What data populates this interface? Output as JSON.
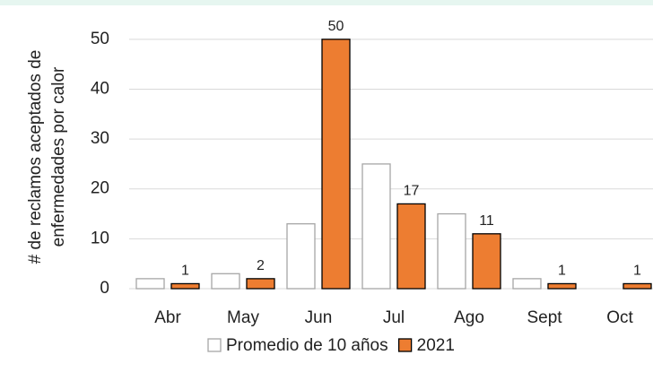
{
  "chart_data": {
    "type": "bar",
    "ylabel": [
      "# de reclamos aceptados de",
      "enfermedades por calor"
    ],
    "categories": [
      "Abr",
      "May",
      "Jun",
      "Jul",
      "Ago",
      "Sept",
      "Oct"
    ],
    "series": [
      {
        "name": "Promedio de 10 años",
        "color": "#ffffff",
        "edge": "#a6a6a6",
        "values": [
          2,
          3,
          13,
          25,
          15,
          2,
          0
        ],
        "data_labels": false
      },
      {
        "name": "2021",
        "color": "#ed7d31",
        "edge": "#000000",
        "values": [
          1,
          2,
          50,
          17,
          11,
          1,
          1
        ],
        "data_labels": true
      }
    ],
    "ylim": [
      0,
      55
    ],
    "yticks": [
      0,
      10,
      20,
      30,
      40,
      50
    ],
    "grid": true,
    "legend": "bottom"
  }
}
